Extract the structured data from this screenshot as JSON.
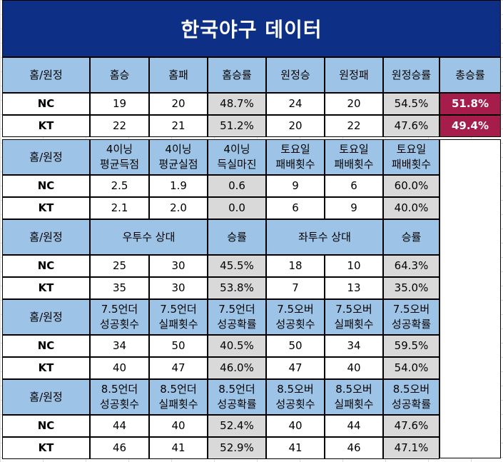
{
  "title": "한국야구 데이터",
  "colors": {
    "title_bg": "#0e2f86",
    "header_bg": "#9dc3e6",
    "highlight": "#a61c4a",
    "shaded": "#d9d9d9"
  },
  "sections": [
    {
      "headers": [
        "홈/원정",
        "홈승",
        "홈패",
        "홈승률",
        "원정승",
        "원정패",
        "원정승률",
        "총승률"
      ],
      "rows": [
        [
          "NC",
          "19",
          "20",
          "48.7%",
          "24",
          "20",
          "54.5%",
          "51.8%"
        ],
        [
          "KT",
          "22",
          "21",
          "51.2%",
          "20",
          "22",
          "47.6%",
          "49.4%"
        ]
      ]
    },
    {
      "headers": [
        "홈/원정",
        "4이닝\n평균득점",
        "4이닝\n평균실점",
        "4이닝\n득실마진",
        "토요일\n패배횟수",
        "토요일\n패배횟수",
        "토요일\n패배횟수"
      ],
      "rows": [
        [
          "NC",
          "2.5",
          "1.9",
          "0.6",
          "9",
          "6",
          "60.0%"
        ],
        [
          "KT",
          "2.1",
          "2.0",
          "0.0",
          "6",
          "9",
          "40.0%"
        ]
      ]
    },
    {
      "headers": [
        "홈/원정",
        "우투수 상대",
        "승률",
        "좌투수 상대",
        "승률"
      ],
      "rows": [
        [
          "NC",
          "25",
          "30",
          "45.5%",
          "18",
          "10",
          "64.3%"
        ],
        [
          "KT",
          "35",
          "30",
          "53.8%",
          "7",
          "13",
          "35.0%"
        ]
      ]
    },
    {
      "headers": [
        "홈/원정",
        "7.5언더\n성공횟수",
        "7.5언더\n실패횟수",
        "7.5언더\n성공확률",
        "7.5오버\n성공횟수",
        "7.5오버\n실패횟수",
        "7.5오버\n성공확률"
      ],
      "rows": [
        [
          "NC",
          "34",
          "50",
          "40.5%",
          "50",
          "34",
          "59.5%"
        ],
        [
          "KT",
          "40",
          "47",
          "46.0%",
          "47",
          "40",
          "54.0%"
        ]
      ]
    },
    {
      "headers": [
        "홈/원정",
        "8.5언더\n성공횟수",
        "8.5언더\n실패횟수",
        "8.5언더\n성공확률",
        "8.5오버\n성공횟수",
        "8.5오버\n실패횟수",
        "8.5오버\n성공확률"
      ],
      "rows": [
        [
          "NC",
          "44",
          "40",
          "52.4%",
          "40",
          "44",
          "47.6%"
        ],
        [
          "KT",
          "46",
          "41",
          "52.9%",
          "41",
          "46",
          "47.1%"
        ]
      ]
    }
  ]
}
